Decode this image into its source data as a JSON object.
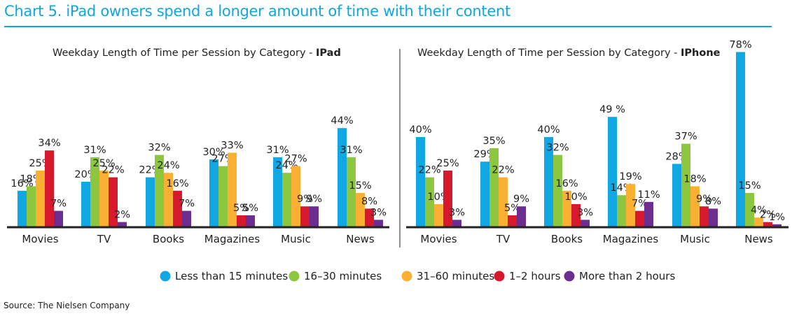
{
  "title": "Chart 5. iPad owners spend a longer amount of time with their content",
  "source": "Source: The Nielsen Company",
  "colors": {
    "series": [
      "#11a7e2",
      "#8dc63f",
      "#fbb034",
      "#d7192e",
      "#6b2d8f"
    ],
    "title": "#11a7db",
    "axis": "#222222",
    "divider": "#222222"
  },
  "legend": [
    "Less than 15 minutes",
    "16–30 minutes",
    "31–60 minutes",
    "1–2 hours",
    "More than 2 hours"
  ],
  "chart_data": [
    {
      "type": "bar",
      "title_prefix": "Weekday Length of Time per Session by Category - ",
      "title_device": "IPad",
      "categories": [
        "Movies",
        "TV",
        "Books",
        "Magazines",
        "Music",
        "News"
      ],
      "series": [
        {
          "name": "Less than 15 minutes",
          "values": [
            16,
            20,
            22,
            30,
            31,
            44
          ],
          "labels": [
            "16%",
            "20%",
            "22%",
            "30%",
            "31%",
            "44%"
          ]
        },
        {
          "name": "16–30 minutes",
          "values": [
            18,
            31,
            32,
            27,
            24,
            31
          ],
          "labels": [
            "18%",
            "31%",
            "32%",
            "27%",
            "24%",
            "31%"
          ]
        },
        {
          "name": "31–60 minutes",
          "values": [
            25,
            25,
            24,
            33,
            27,
            15
          ],
          "labels": [
            "25%",
            "25%",
            "24%",
            "33%",
            "27%",
            "15%"
          ]
        },
        {
          "name": "1–2 hours",
          "values": [
            34,
            22,
            16,
            5,
            9,
            8
          ],
          "labels": [
            "34%",
            "22%",
            "16%",
            "5%",
            "9%",
            "8%"
          ]
        },
        {
          "name": "More than 2 hours",
          "values": [
            7,
            2,
            7,
            5,
            9,
            3
          ],
          "labels": [
            "7%",
            "2%",
            "7%",
            "5%",
            "9%",
            "3%"
          ]
        }
      ],
      "ylim": [
        0,
        80
      ],
      "grid": false,
      "legend_position": "bottom"
    },
    {
      "type": "bar",
      "title_prefix": "Weekday Length of Time per Session by Category - ",
      "title_device": "IPhone",
      "categories": [
        "Movies",
        "TV",
        "Books",
        "Magazines",
        "Music",
        "News"
      ],
      "series": [
        {
          "name": "Less than 15 minutes",
          "values": [
            40,
            29,
            40,
            49,
            28,
            78
          ],
          "labels": [
            "40%",
            "29%",
            "40%",
            "49 %",
            "28%",
            "78%"
          ]
        },
        {
          "name": "16–30 minutes",
          "values": [
            22,
            35,
            32,
            14,
            37,
            15
          ],
          "labels": [
            "22%",
            "35%",
            "32%",
            "14%",
            "37%",
            "15%"
          ]
        },
        {
          "name": "31–60 minutes",
          "values": [
            10,
            22,
            16,
            19,
            18,
            4
          ],
          "labels": [
            "10%",
            "22%",
            "16%",
            "19%",
            "18%",
            "4%"
          ]
        },
        {
          "name": "1–2 hours",
          "values": [
            25,
            5,
            10,
            7,
            9,
            2
          ],
          "labels": [
            "25%",
            "5%",
            "10%",
            "7%",
            "9%",
            "2%"
          ]
        },
        {
          "name": "More than 2 hours",
          "values": [
            3,
            9,
            3,
            11,
            8,
            1
          ],
          "labels": [
            "3%",
            "9%",
            "3%",
            "11%",
            "8%",
            "1%"
          ]
        }
      ],
      "ylim": [
        0,
        80
      ],
      "grid": false,
      "legend_position": "bottom"
    }
  ]
}
